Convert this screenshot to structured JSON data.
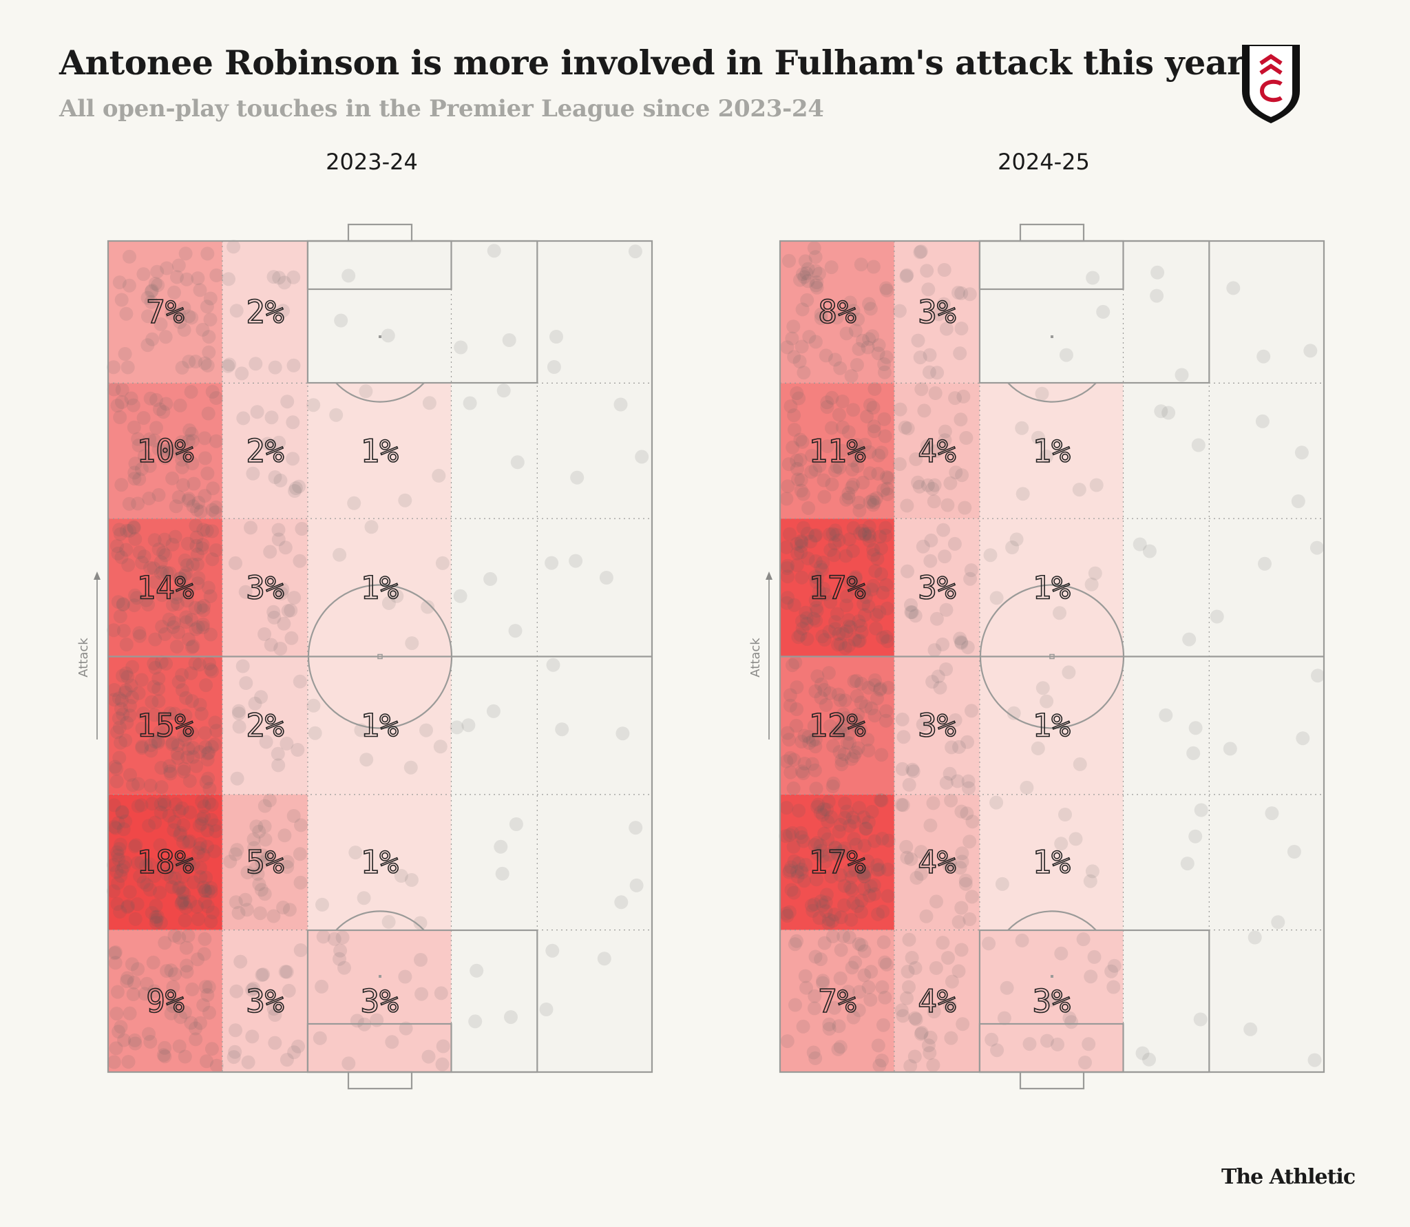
{
  "title": "Antonee Robinson is more involved in Fulham's attack this year",
  "subtitle": "All open-play touches in the Premier League since 2023-24",
  "brand": "The Athletic",
  "colors": {
    "background": "#f8f7f2",
    "heat_max": "#f04848",
    "heat_min": "#fbeeea",
    "pitch_line": "#9a9a98",
    "touch_dot": "#5a5a5a"
  },
  "chart_data": [
    {
      "type": "heatmap",
      "title": "2023-24",
      "direction_label": "Attack",
      "zone_columns": [
        "left wide",
        "left inside",
        "centre",
        "right inside",
        "right wide"
      ],
      "zone_rows_attack_first": [
        "final sixth",
        "fifth",
        "fourth",
        "third",
        "second",
        "first sixth"
      ],
      "values": [
        [
          7,
          2,
          0,
          0,
          0
        ],
        [
          10,
          2,
          1,
          0,
          0
        ],
        [
          14,
          3,
          1,
          0,
          0
        ],
        [
          15,
          2,
          1,
          0,
          0
        ],
        [
          18,
          5,
          1,
          0,
          0
        ],
        [
          9,
          3,
          3,
          0,
          0
        ]
      ],
      "labels": [
        [
          "7%",
          "2%",
          "",
          "",
          ""
        ],
        [
          "10%",
          "2%",
          "1%",
          "",
          ""
        ],
        [
          "14%",
          "3%",
          "1%",
          "",
          ""
        ],
        [
          "15%",
          "2%",
          "1%",
          "",
          ""
        ],
        [
          "18%",
          "5%",
          "1%",
          "",
          ""
        ],
        [
          "9%",
          "3%",
          "3%",
          "",
          ""
        ]
      ],
      "unit": "% of touches"
    },
    {
      "type": "heatmap",
      "title": "2024-25",
      "direction_label": "Attack",
      "zone_columns": [
        "left wide",
        "left inside",
        "centre",
        "right inside",
        "right wide"
      ],
      "zone_rows_attack_first": [
        "final sixth",
        "fifth",
        "fourth",
        "third",
        "second",
        "first sixth"
      ],
      "values": [
        [
          8,
          3,
          0,
          0,
          0
        ],
        [
          11,
          4,
          1,
          0,
          0
        ],
        [
          17,
          3,
          1,
          0,
          0
        ],
        [
          12,
          3,
          1,
          0,
          0
        ],
        [
          17,
          4,
          1,
          0,
          0
        ],
        [
          7,
          4,
          3,
          0,
          0
        ]
      ],
      "labels": [
        [
          "8%",
          "3%",
          "",
          "",
          ""
        ],
        [
          "11%",
          "4%",
          "1%",
          "",
          ""
        ],
        [
          "17%",
          "3%",
          "1%",
          "",
          ""
        ],
        [
          "12%",
          "3%",
          "1%",
          "",
          ""
        ],
        [
          "17%",
          "4%",
          "1%",
          "",
          ""
        ],
        [
          "7%",
          "4%",
          "3%",
          "",
          ""
        ]
      ],
      "unit": "% of touches"
    }
  ]
}
